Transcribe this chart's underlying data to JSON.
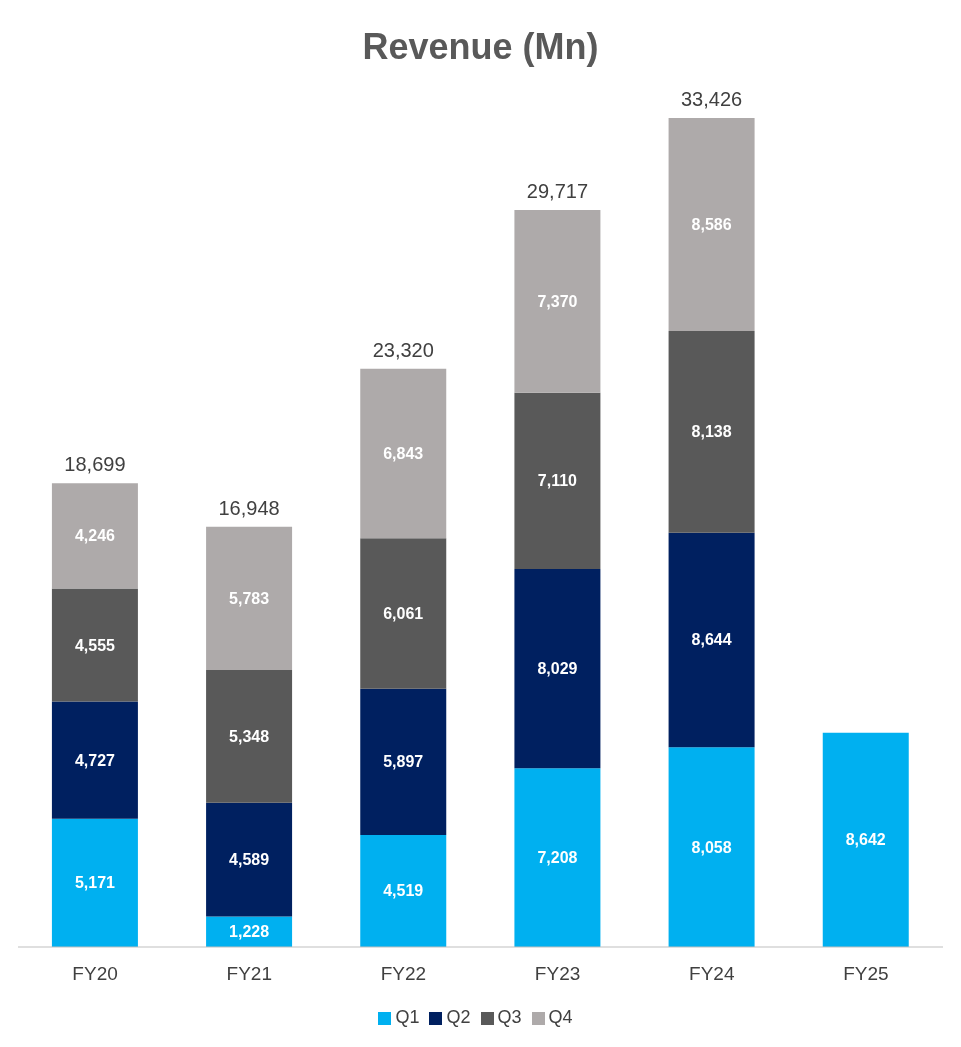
{
  "chart_data": {
    "type": "bar",
    "title": "Revenue (Mn)",
    "stacked": true,
    "legend": "bottom",
    "grid": false,
    "categories": [
      "FY20",
      "FY21",
      "FY22",
      "FY23",
      "FY24",
      "FY25"
    ],
    "series": [
      {
        "name": "Q1",
        "color": "#00b0f0",
        "values": [
          5171,
          1228,
          4519,
          7208,
          8058,
          8642
        ],
        "value_labels": [
          "5,171",
          "1,228",
          "4,519",
          "7,208",
          "8,058",
          "8,642"
        ]
      },
      {
        "name": "Q2",
        "color": "#002060",
        "values": [
          4727,
          4589,
          5897,
          8029,
          8644,
          null
        ],
        "value_labels": [
          "4,727",
          "4,589",
          "5,897",
          "8,029",
          "8,644",
          null
        ]
      },
      {
        "name": "Q3",
        "color": "#595959",
        "values": [
          4555,
          5348,
          6061,
          7110,
          8138,
          null
        ],
        "value_labels": [
          "4,555",
          "5,348",
          "6,061",
          "7,110",
          "8,138",
          null
        ]
      },
      {
        "name": "Q4",
        "color": "#aeaaaa",
        "values": [
          4246,
          5783,
          6843,
          7370,
          8586,
          null
        ],
        "value_labels": [
          "4,246",
          "5,783",
          "6,843",
          "7,370",
          "8,586",
          null
        ]
      }
    ],
    "totals": [
      "18,699",
      "16,948",
      "23,320",
      "29,717",
      "33,426",
      null
    ]
  }
}
